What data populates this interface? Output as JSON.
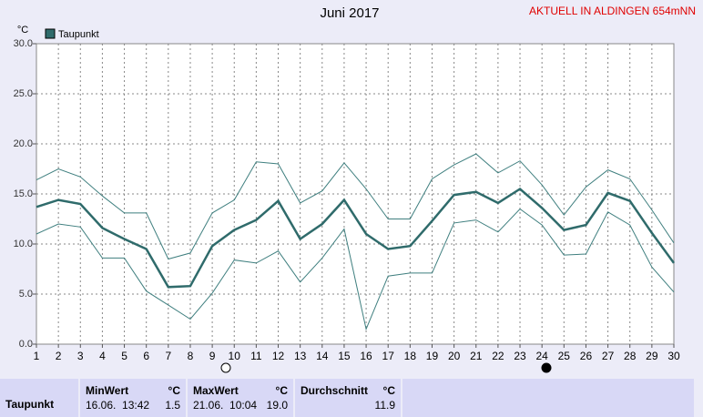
{
  "chart_data": {
    "type": "line",
    "title": "Juni 2017",
    "header_note": "AKTUELL IN ALDINGEN 654mNN",
    "y_label": "°C",
    "x": [
      1,
      2,
      3,
      4,
      5,
      6,
      7,
      8,
      9,
      10,
      11,
      12,
      13,
      14,
      15,
      16,
      17,
      18,
      19,
      20,
      21,
      22,
      23,
      24,
      25,
      26,
      27,
      28,
      29,
      30
    ],
    "xlim": [
      1,
      30
    ],
    "xticks": [
      1,
      2,
      3,
      4,
      5,
      6,
      7,
      8,
      9,
      10,
      11,
      12,
      13,
      14,
      15,
      16,
      17,
      18,
      19,
      20,
      21,
      22,
      23,
      24,
      25,
      26,
      27,
      28,
      29,
      30
    ],
    "ylim": [
      0,
      30
    ],
    "yticks": [
      {
        "value": 0,
        "label": "0.0"
      },
      {
        "value": 5,
        "label": "5.0"
      },
      {
        "value": 10,
        "label": "10.0"
      },
      {
        "value": 15,
        "label": "15.0"
      },
      {
        "value": 20,
        "label": "20.0"
      },
      {
        "value": 25,
        "label": "25.0"
      },
      {
        "value": 30,
        "label": "30.0"
      }
    ],
    "grid": true,
    "legend": "top-left",
    "series": [
      {
        "name": "Taupunkt",
        "color": "#2f6b6b",
        "values": [
          13.7,
          14.4,
          14.0,
          11.6,
          10.5,
          9.5,
          5.7,
          5.8,
          9.8,
          11.4,
          12.4,
          14.3,
          10.5,
          12.0,
          14.4,
          11.0,
          9.5,
          9.8,
          12.3,
          14.9,
          15.2,
          14.1,
          15.5,
          13.6,
          11.4,
          11.9,
          15.1,
          14.3,
          11.1,
          8.1
        ]
      },
      {
        "color": "#3f7f7f",
        "values": [
          16.4,
          17.5,
          16.7,
          14.8,
          13.1,
          13.1,
          8.5,
          9.1,
          13.1,
          14.4,
          18.2,
          18.0,
          14.1,
          15.3,
          18.1,
          15.5,
          12.5,
          12.5,
          16.5,
          17.9,
          19.0,
          17.1,
          18.3,
          15.9,
          12.9,
          15.7,
          17.4,
          16.5,
          13.4,
          10.1
        ]
      },
      {
        "color": "#3f7f7f",
        "values": [
          11.0,
          12.0,
          11.7,
          8.6,
          8.6,
          5.3,
          3.9,
          2.5,
          5.1,
          8.4,
          8.1,
          9.3,
          6.2,
          8.6,
          11.5,
          1.5,
          6.8,
          7.1,
          7.1,
          12.1,
          12.4,
          11.2,
          13.5,
          11.9,
          8.9,
          9.0,
          13.2,
          11.9,
          7.7,
          5.2
        ]
      }
    ]
  },
  "summary_table": {
    "row_label": "Taupunkt",
    "min": {
      "header": "MinWert",
      "unit": "°C",
      "time": "16.06.  13:42",
      "value": "1.5"
    },
    "max": {
      "header": "MaxWert",
      "unit": "°C",
      "time": "21.06.  10:04",
      "value": "19.0"
    },
    "avg": {
      "header": "Durchschnitt",
      "unit": "°C",
      "value": "11.9"
    }
  }
}
